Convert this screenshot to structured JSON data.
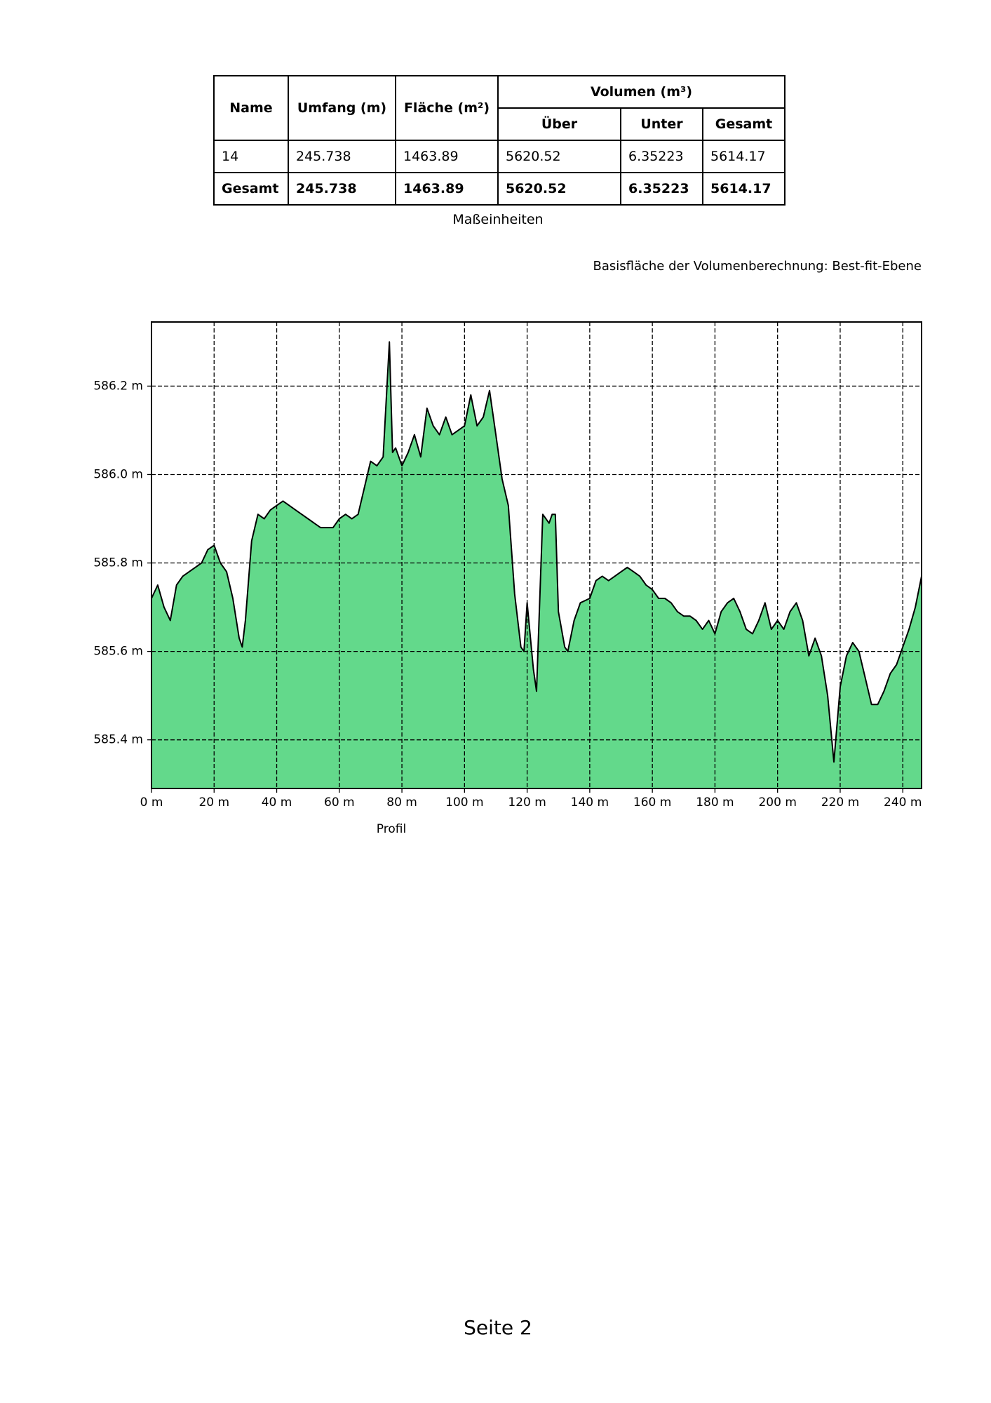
{
  "table": {
    "header": [
      "Name",
      "Umfang (m)",
      "Fläche (m²)",
      "Volumen (m³)"
    ],
    "subheader": [
      "Über",
      "Unter",
      "Gesamt"
    ],
    "rows": [
      [
        "14",
        "245.738",
        "1463.89",
        "5620.52",
        "6.35223",
        "5614.17"
      ],
      [
        "Gesamt",
        "245.738",
        "1463.89",
        "5620.52",
        "6.35223",
        "5614.17"
      ]
    ]
  },
  "table_caption": "Maßeinheiten",
  "note": "Basisfläche der Volumenberechnung: Best-fit-Ebene",
  "chart_data": {
    "type": "area",
    "xlabel": "Profil",
    "x": [
      0,
      2,
      4,
      6,
      8,
      10,
      12,
      14,
      16,
      18,
      20,
      22,
      24,
      26,
      28,
      29,
      30,
      32,
      34,
      36,
      38,
      40,
      42,
      44,
      46,
      48,
      50,
      52,
      54,
      56,
      58,
      60,
      62,
      64,
      66,
      68,
      70,
      72,
      74,
      76,
      77,
      78,
      80,
      82,
      84,
      86,
      88,
      90,
      92,
      94,
      96,
      98,
      100,
      102,
      104,
      106,
      108,
      110,
      112,
      114,
      116,
      118,
      119,
      120,
      122,
      123,
      125,
      127,
      128,
      129,
      130,
      132,
      133,
      135,
      137,
      140,
      142,
      144,
      146,
      148,
      150,
      152,
      154,
      156,
      158,
      160,
      162,
      164,
      166,
      168,
      170,
      172,
      174,
      176,
      178,
      180,
      182,
      184,
      186,
      188,
      190,
      192,
      194,
      196,
      198,
      200,
      202,
      204,
      206,
      208,
      210,
      212,
      214,
      216,
      218,
      220,
      222,
      224,
      226,
      228,
      230,
      232,
      234,
      236,
      238,
      240,
      242,
      244,
      246
    ],
    "series": [
      {
        "color": "#63d98b",
        "line_color": "#000000",
        "values": [
          585.72,
          585.75,
          585.7,
          585.67,
          585.75,
          585.77,
          585.78,
          585.79,
          585.8,
          585.83,
          585.84,
          585.8,
          585.78,
          585.72,
          585.63,
          585.61,
          585.67,
          585.85,
          585.91,
          585.9,
          585.92,
          585.93,
          585.94,
          585.93,
          585.92,
          585.91,
          585.9,
          585.89,
          585.88,
          585.88,
          585.88,
          585.9,
          585.91,
          585.9,
          585.91,
          585.97,
          586.03,
          586.02,
          586.04,
          586.3,
          586.05,
          586.06,
          586.02,
          586.05,
          586.09,
          586.04,
          586.15,
          586.11,
          586.09,
          586.13,
          586.09,
          586.1,
          586.11,
          586.18,
          586.11,
          586.13,
          586.19,
          586.09,
          585.99,
          585.93,
          585.73,
          585.61,
          585.6,
          585.71,
          585.56,
          585.51,
          585.91,
          585.89,
          585.91,
          585.91,
          585.69,
          585.61,
          585.6,
          585.67,
          585.71,
          585.72,
          585.76,
          585.77,
          585.76,
          585.77,
          585.78,
          585.79,
          585.78,
          585.77,
          585.75,
          585.74,
          585.72,
          585.72,
          585.71,
          585.69,
          585.68,
          585.68,
          585.67,
          585.65,
          585.67,
          585.64,
          585.69,
          585.71,
          585.72,
          585.69,
          585.65,
          585.64,
          585.67,
          585.71,
          585.65,
          585.67,
          585.65,
          585.69,
          585.71,
          585.67,
          585.59,
          585.63,
          585.59,
          585.5,
          585.35,
          585.52,
          585.59,
          585.62,
          585.6,
          585.54,
          585.48,
          585.48,
          585.51,
          585.55,
          585.57,
          585.61,
          585.65,
          585.7,
          585.77
        ]
      }
    ],
    "xlim": [
      0,
      246
    ],
    "ylim": [
      585.29,
      586.345
    ],
    "xticks": [
      {
        "value": 0,
        "label": "0 m"
      },
      {
        "value": 20,
        "label": "20 m"
      },
      {
        "value": 40,
        "label": "40 m"
      },
      {
        "value": 60,
        "label": "60 m"
      },
      {
        "value": 80,
        "label": "80 m"
      },
      {
        "value": 100,
        "label": "100 m"
      },
      {
        "value": 120,
        "label": "120 m"
      },
      {
        "value": 140,
        "label": "140 m"
      },
      {
        "value": 160,
        "label": "160 m"
      },
      {
        "value": 180,
        "label": "180 m"
      },
      {
        "value": 200,
        "label": "200 m"
      },
      {
        "value": 220,
        "label": "220 m"
      },
      {
        "value": 240,
        "label": "240 m"
      }
    ],
    "yticks": [
      {
        "value": 585.4,
        "label": "585.4 m"
      },
      {
        "value": 585.6,
        "label": "585.6 m"
      },
      {
        "value": 585.8,
        "label": "585.8 m"
      },
      {
        "value": 586.0,
        "label": "586.0 m"
      },
      {
        "value": 586.2,
        "label": "586.2 m"
      }
    ],
    "grid": true
  },
  "footer": "Seite 2"
}
